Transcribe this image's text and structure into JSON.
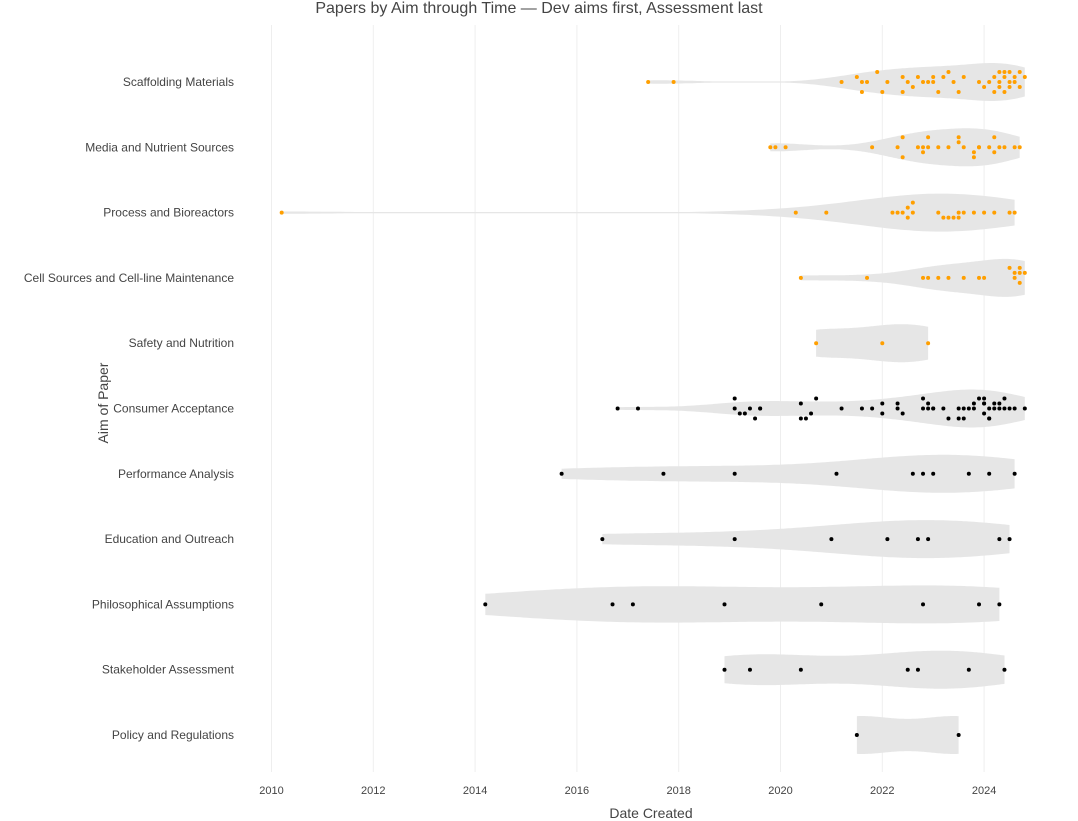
{
  "chart_data": {
    "type": "violin",
    "title": "Papers by Aim through Time — Dev aims first, Assessment last",
    "xlabel": "Date Created",
    "ylabel": "Aim of Paper",
    "xlim": [
      2009.5,
      2025.2
    ],
    "x_ticks": [
      2010,
      2012,
      2014,
      2016,
      2018,
      2020,
      2022,
      2024
    ],
    "grid": true,
    "legend": "none",
    "colors": {
      "dev": "#ff9f00",
      "assessment": "#000000",
      "violin": "#e6e6e6",
      "grid": "#eeeeee"
    },
    "categories": [
      "Scaffolding Materials",
      "Media and Nutrient Sources",
      "Process and Bioreactors",
      "Cell Sources and Cell-line Maintenance",
      "Safety and Nutrition",
      "Consumer Acceptance",
      "Performance Analysis",
      "Education and Outreach",
      "Philosophical Assumptions",
      "Stakeholder Assessment",
      "Policy and Regulations"
    ],
    "series": [
      {
        "category": "Scaffolding Materials",
        "group": "dev",
        "x": [
          2017.4,
          2017.9,
          2021.2,
          2021.5,
          2021.6,
          2021.6,
          2021.7,
          2021.9,
          2022.0,
          2022.1,
          2022.4,
          2022.4,
          2022.5,
          2022.6,
          2022.7,
          2022.8,
          2022.9,
          2023.0,
          2023.0,
          2023.1,
          2023.2,
          2023.3,
          2023.4,
          2023.5,
          2023.6,
          2023.9,
          2024.0,
          2024.1,
          2024.2,
          2024.2,
          2024.3,
          2024.3,
          2024.3,
          2024.4,
          2024.4,
          2024.4,
          2024.5,
          2024.5,
          2024.5,
          2024.6,
          2024.6,
          2024.7,
          2024.7,
          2024.8
        ],
        "y": [
          0.0,
          0.0,
          0.0,
          0.1,
          -0.2,
          0.0,
          0.0,
          0.2,
          -0.2,
          0.0,
          0.1,
          -0.2,
          0.0,
          -0.1,
          0.1,
          0.0,
          0.0,
          0.1,
          0.0,
          -0.2,
          0.1,
          0.2,
          0.0,
          -0.2,
          0.1,
          0.0,
          -0.1,
          0.0,
          0.1,
          -0.2,
          0.2,
          -0.1,
          0.0,
          0.2,
          -0.2,
          0.1,
          0.0,
          0.2,
          -0.1,
          0.1,
          0.0,
          0.2,
          -0.1,
          0.1
        ]
      },
      {
        "category": "Media and Nutrient Sources",
        "group": "dev",
        "x": [
          2019.8,
          2019.9,
          2020.1,
          2021.8,
          2022.3,
          2022.4,
          2022.4,
          2022.7,
          2022.8,
          2022.8,
          2022.9,
          2022.9,
          2023.1,
          2023.3,
          2023.5,
          2023.5,
          2023.6,
          2023.8,
          2023.8,
          2023.9,
          2023.9,
          2024.1,
          2024.2,
          2024.2,
          2024.3,
          2024.4,
          2024.6,
          2024.7
        ],
        "y": [
          0.0,
          0.0,
          0.0,
          0.0,
          0.0,
          0.2,
          -0.2,
          0.0,
          0.0,
          -0.1,
          0.2,
          0.0,
          0.0,
          0.0,
          0.1,
          0.2,
          0.0,
          -0.1,
          -0.2,
          0.0,
          0.0,
          0.0,
          0.2,
          -0.1,
          0.0,
          0.0,
          0.0,
          0.0
        ]
      },
      {
        "category": "Process and Bioreactors",
        "group": "dev",
        "x": [
          2010.2,
          2020.3,
          2020.9,
          2022.2,
          2022.3,
          2022.4,
          2022.5,
          2022.5,
          2022.6,
          2022.6,
          2023.1,
          2023.2,
          2023.3,
          2023.4,
          2023.5,
          2023.5,
          2023.6,
          2023.8,
          2024.0,
          2024.2,
          2024.5,
          2024.6
        ],
        "y": [
          0.0,
          0.0,
          0.0,
          0.0,
          0.0,
          0.0,
          0.1,
          -0.1,
          0.2,
          0.0,
          0.0,
          -0.1,
          -0.1,
          -0.1,
          0.0,
          -0.1,
          0.0,
          0.0,
          0.0,
          0.0,
          0.0,
          0.0
        ]
      },
      {
        "category": "Cell Sources and Cell-line Maintenance",
        "group": "dev",
        "x": [
          2020.4,
          2021.7,
          2022.8,
          2022.9,
          2023.1,
          2023.3,
          2023.6,
          2023.9,
          2024.0,
          2024.5,
          2024.6,
          2024.6,
          2024.7,
          2024.7,
          2024.7,
          2024.8
        ],
        "y": [
          0.0,
          0.0,
          0.0,
          0.0,
          0.0,
          0.0,
          0.0,
          0.0,
          0.0,
          0.2,
          0.0,
          0.1,
          -0.1,
          0.1,
          0.2,
          0.1
        ]
      },
      {
        "category": "Safety and Nutrition",
        "group": "dev",
        "x": [
          2020.7,
          2022.0,
          2022.9
        ],
        "y": [
          0.0,
          0.0,
          0.0
        ]
      },
      {
        "category": "Consumer Acceptance",
        "group": "assessment",
        "x": [
          2016.8,
          2017.2,
          2019.1,
          2019.1,
          2019.2,
          2019.3,
          2019.4,
          2019.5,
          2019.6,
          2019.6,
          2020.4,
          2020.4,
          2020.5,
          2020.6,
          2020.7,
          2021.2,
          2021.6,
          2021.8,
          2022.0,
          2022.0,
          2022.3,
          2022.3,
          2022.4,
          2022.8,
          2022.8,
          2022.9,
          2022.9,
          2023.0,
          2023.0,
          2023.2,
          2023.3,
          2023.5,
          2023.5,
          2023.6,
          2023.6,
          2023.7,
          2023.8,
          2023.8,
          2023.9,
          2024.0,
          2024.0,
          2024.0,
          2024.0,
          2024.1,
          2024.1,
          2024.1,
          2024.2,
          2024.2,
          2024.3,
          2024.3,
          2024.4,
          2024.4,
          2024.5,
          2024.6,
          2024.8
        ],
        "y": [
          0.0,
          0.0,
          0.2,
          0.0,
          -0.1,
          -0.1,
          0.0,
          -0.2,
          0.0,
          0.0,
          0.1,
          -0.2,
          -0.2,
          -0.1,
          0.2,
          0.0,
          0.0,
          0.0,
          0.1,
          -0.1,
          0.1,
          0.0,
          -0.1,
          0.2,
          0.0,
          0.1,
          0.0,
          0.0,
          0.0,
          0.0,
          -0.2,
          0.0,
          -0.2,
          0.0,
          -0.2,
          0.0,
          0.1,
          0.0,
          0.2,
          0.1,
          -0.1,
          0.2,
          0.1,
          -0.2,
          0.0,
          -0.2,
          0.0,
          0.1,
          0.1,
          0.0,
          0.0,
          0.2,
          0.0,
          0.0,
          0.0
        ]
      },
      {
        "category": "Performance Analysis",
        "group": "assessment",
        "x": [
          2015.7,
          2017.7,
          2019.1,
          2021.1,
          2022.6,
          2022.8,
          2023.0,
          2023.7,
          2024.1,
          2024.6
        ],
        "y": [
          0.0,
          0.0,
          0.0,
          0.0,
          0.0,
          0.0,
          0.0,
          0.0,
          0.0,
          0.0
        ]
      },
      {
        "category": "Education and Outreach",
        "group": "assessment",
        "x": [
          2016.5,
          2019.1,
          2021.0,
          2022.1,
          2022.7,
          2022.9,
          2024.3,
          2024.5
        ],
        "y": [
          0.0,
          0.0,
          0.0,
          0.0,
          0.0,
          0.0,
          0.0,
          0.0
        ]
      },
      {
        "category": "Philosophical Assumptions",
        "group": "assessment",
        "x": [
          2014.2,
          2016.7,
          2017.1,
          2018.9,
          2020.8,
          2022.8,
          2023.9,
          2024.3
        ],
        "y": [
          0.0,
          0.0,
          0.0,
          0.0,
          0.0,
          0.0,
          0.0,
          0.0
        ]
      },
      {
        "category": "Stakeholder Assessment",
        "group": "assessment",
        "x": [
          2018.9,
          2019.4,
          2020.4,
          2022.5,
          2022.7,
          2023.7,
          2024.4
        ],
        "y": [
          0.0,
          0.0,
          0.0,
          0.0,
          0.0,
          0.0,
          0.0
        ]
      },
      {
        "category": "Policy and Regulations",
        "group": "assessment",
        "x": [
          2021.5,
          2023.5
        ],
        "y": [
          0.0,
          0.0
        ]
      }
    ]
  }
}
